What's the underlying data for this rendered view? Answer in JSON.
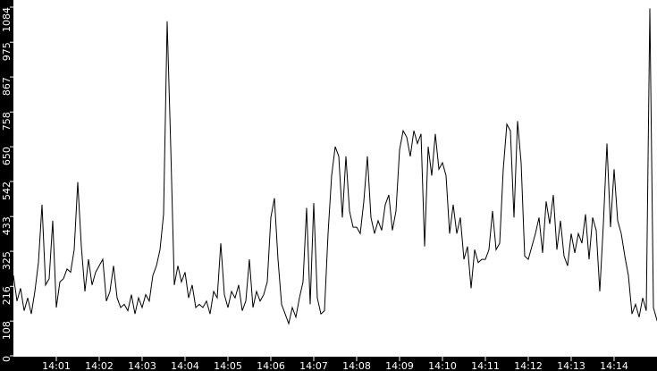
{
  "chart_data": {
    "type": "line",
    "title": "",
    "xlabel": "",
    "ylabel": "",
    "x_start": "14:00:00",
    "x_step_seconds": 5,
    "xlim": [
      "14:00:00",
      "14:15:00"
    ],
    "ylim": [
      0,
      1084
    ],
    "grid": false,
    "legend": "none",
    "colors": {
      "line": "#000000",
      "background": "#ffffff",
      "axis_band": "#000000",
      "axis_text": "#ffffff"
    },
    "y_ticks": [
      "0",
      "108",
      "216",
      "325",
      "433",
      "542",
      "650",
      "758",
      "867",
      "975",
      "1084"
    ],
    "x_ticks": [
      "14:01",
      "14:02",
      "14:03",
      "14:04",
      "14:05",
      "14:06",
      "14:07",
      "14:08",
      "14:09",
      "14:10",
      "14:11",
      "14:12",
      "14:13",
      "14:14"
    ],
    "values": [
      250,
      170,
      210,
      140,
      180,
      130,
      200,
      290,
      470,
      220,
      240,
      420,
      150,
      230,
      240,
      270,
      260,
      330,
      540,
      340,
      200,
      300,
      220,
      260,
      280,
      300,
      170,
      200,
      280,
      180,
      150,
      160,
      140,
      190,
      130,
      180,
      150,
      190,
      170,
      250,
      280,
      330,
      440,
      1040,
      650,
      220,
      280,
      230,
      260,
      180,
      220,
      150,
      160,
      150,
      170,
      130,
      200,
      180,
      350,
      190,
      150,
      200,
      180,
      220,
      140,
      170,
      300,
      150,
      200,
      170,
      190,
      230,
      430,
      490,
      300,
      160,
      130,
      100,
      150,
      120,
      180,
      230,
      460,
      160,
      475,
      180,
      130,
      140,
      380,
      560,
      650,
      620,
      430,
      620,
      450,
      400,
      400,
      380,
      480,
      620,
      430,
      380,
      420,
      390,
      470,
      500,
      390,
      450,
      640,
      700,
      680,
      620,
      700,
      660,
      690,
      340,
      650,
      560,
      690,
      580,
      600,
      560,
      380,
      470,
      380,
      430,
      300,
      340,
      210,
      330,
      290,
      300,
      300,
      330,
      450,
      330,
      350,
      580,
      720,
      700,
      430,
      730,
      600,
      310,
      300,
      340,
      380,
      430,
      320,
      480,
      410,
      500,
      330,
      420,
      310,
      280,
      380,
      320,
      380,
      350,
      440,
      300,
      430,
      390,
      200,
      410,
      660,
      400,
      580,
      420,
      380,
      310,
      250,
      130,
      160,
      120,
      180,
      140,
      1080,
      150,
      110,
      120
    ]
  }
}
